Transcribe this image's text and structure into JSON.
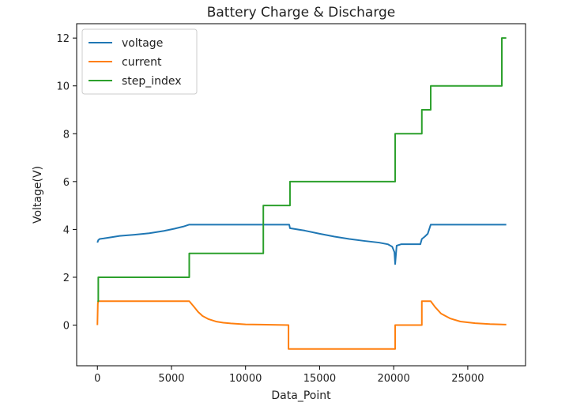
{
  "chart_data": {
    "type": "line",
    "title": "Battery Charge & Discharge",
    "xlabel": "Data_Point",
    "ylabel": "Voltage(V)",
    "xlim": [
      -1400,
      28900
    ],
    "ylim": [
      -1.7,
      12.6
    ],
    "xticks": [
      0,
      5000,
      10000,
      15000,
      20000,
      25000
    ],
    "yticks": [
      0,
      2,
      4,
      6,
      8,
      10,
      12
    ],
    "grid": false,
    "legend_position": "top-left",
    "series": [
      {
        "name": "voltage",
        "color": "#1f77b4",
        "x": [
          0,
          60,
          150,
          400,
          1000,
          1500,
          2500,
          3500,
          4500,
          5200,
          5800,
          6200,
          7000,
          9000,
          11000,
          12800,
          12950,
          13000,
          14000,
          15000,
          16000,
          17000,
          18000,
          19000,
          19600,
          19900,
          20050,
          20100,
          20200,
          20500,
          21000,
          21800,
          21900,
          22100,
          22300,
          22500,
          22600,
          23500,
          25000,
          27600
        ],
        "y": [
          3.45,
          3.55,
          3.6,
          3.62,
          3.68,
          3.73,
          3.78,
          3.84,
          3.94,
          4.03,
          4.12,
          4.2,
          4.2,
          4.2,
          4.2,
          4.2,
          4.2,
          4.05,
          3.95,
          3.82,
          3.7,
          3.6,
          3.52,
          3.45,
          3.38,
          3.28,
          3.05,
          2.55,
          3.32,
          3.38,
          3.38,
          3.38,
          3.6,
          3.7,
          3.82,
          4.2,
          4.2,
          4.2,
          4.2,
          4.2
        ]
      },
      {
        "name": "current",
        "color": "#ff7f0e",
        "x": [
          0,
          30,
          60,
          6200,
          6500,
          6800,
          7100,
          7500,
          8000,
          8500,
          9000,
          10000,
          11000,
          12900,
          12900,
          20100,
          20100,
          21900,
          21900,
          22500,
          22800,
          23200,
          23800,
          24500,
          25500,
          26500,
          27600
        ],
        "y": [
          0.0,
          0.9,
          1.0,
          1.0,
          0.78,
          0.55,
          0.38,
          0.25,
          0.15,
          0.1,
          0.07,
          0.03,
          0.02,
          0.0,
          -1.0,
          -1.0,
          0.0,
          0.0,
          1.0,
          1.0,
          0.75,
          0.48,
          0.28,
          0.15,
          0.08,
          0.04,
          0.02
        ]
      },
      {
        "name": "step_index",
        "color": "#2ca02c",
        "x": [
          0,
          0,
          60,
          60,
          6200,
          6200,
          11200,
          11200,
          13000,
          13000,
          20100,
          20100,
          21900,
          21900,
          22500,
          22500,
          27300,
          27300,
          27600
        ],
        "y": [
          1,
          1,
          1,
          2,
          2,
          3,
          3,
          5,
          5,
          6,
          6,
          8,
          8,
          9,
          9,
          10,
          10,
          12,
          12
        ]
      }
    ]
  }
}
